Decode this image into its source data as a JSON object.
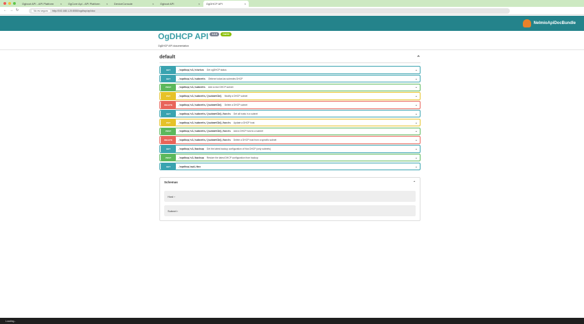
{
  "browser": {
    "tabs": [
      {
        "label": "Ogboot API - API Platform"
      },
      {
        "label": "OgCore Api - API Platform"
      },
      {
        "label": "DeviceConsole"
      },
      {
        "label": "Ogboot API"
      },
      {
        "label": "OgDHCP API",
        "active": true
      }
    ],
    "security_label": "No es seguro",
    "url": "http://192.168.1.20:8080/ogdhcp/api/doc"
  },
  "header": {
    "brand": "NelmioApiDocBundle"
  },
  "info": {
    "title": "OgDHCP API",
    "version": "1.0.0",
    "oas": "OAS3",
    "description": "OgDHCP API documentation"
  },
  "section": {
    "title": "default"
  },
  "colors": {
    "GET": "#3aa3b0",
    "POST": "#5cb85c",
    "PUT": "#e6c229",
    "DELETE": "#e8645a",
    "header": "#24838b"
  },
  "operations": [
    {
      "method": "GET",
      "path": "/ogdhcp/v1/status",
      "summary": "Get ogDHCP status"
    },
    {
      "method": "GET",
      "path": "/ogdhcp/v1/subnets",
      "summary": "Obtiene todas las subredes DHCP"
    },
    {
      "method": "POST",
      "path": "/ogdhcp/v1/subnets",
      "summary": "Add a new DHCP subnet"
    },
    {
      "method": "PUT",
      "path": "/ogdhcp/v1/subnets/{subnetId}",
      "summary": "Modify a DHCP subnet"
    },
    {
      "method": "DELETE",
      "path": "/ogdhcp/v1/subnets/{subnetId}",
      "summary": "Delete a DHCP subnet"
    },
    {
      "method": "GET",
      "path": "/ogdhcp/v1/subnets/{subnetId}/hosts",
      "summary": "Get all hosts in a subnet"
    },
    {
      "method": "PUT",
      "path": "/ogdhcp/v1/subnets/{subnetId}/hosts",
      "summary": "Update a DHCP host"
    },
    {
      "method": "POST",
      "path": "/ogdhcp/v1/subnets/{subnetId}/hosts",
      "summary": "Add a DHCP host to a subnet"
    },
    {
      "method": "DELETE",
      "path": "/ogdhcp/v1/subnets/{subnetId}/hosts",
      "summary": "Delete a DHCP host from a specific subnet"
    },
    {
      "method": "GET",
      "path": "/ogdhcp/v1/backup",
      "summary": "Get the latest backup configuration of Kea DHCP (only subnets)"
    },
    {
      "method": "POST",
      "path": "/ogdhcp/v1/backup",
      "summary": "Restore the latest DHCP configuration from backup"
    },
    {
      "method": "GET",
      "path": "/ogdhcp/api/doc",
      "summary": ""
    }
  ],
  "schemas": {
    "title": "Schemas",
    "models": [
      {
        "name": "Host"
      },
      {
        "name": "Subnet"
      }
    ]
  },
  "status": "Loading..."
}
